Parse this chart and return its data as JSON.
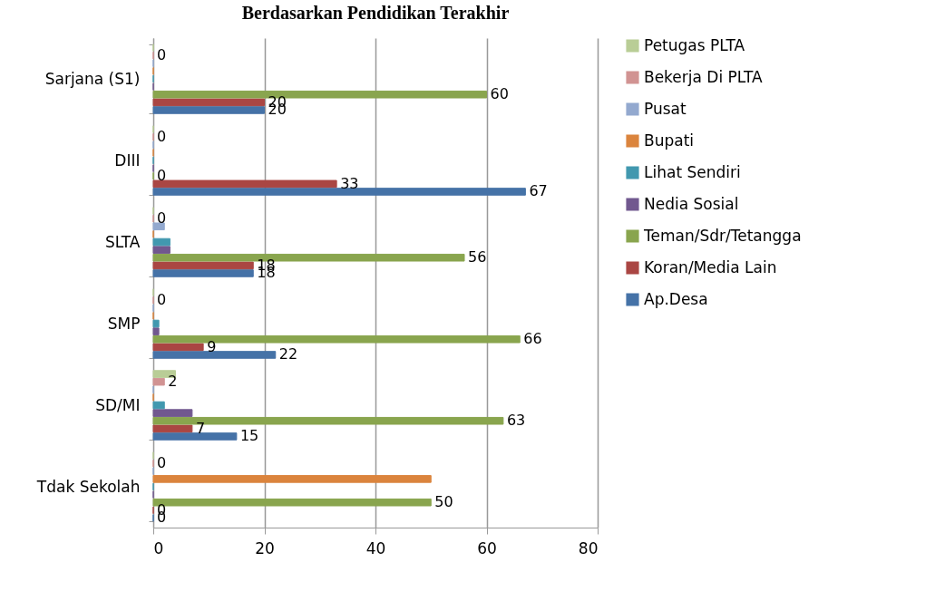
{
  "chart_data": {
    "type": "bar",
    "orientation": "horizontal",
    "title": "Berdasarkan Pendidikan Terakhir",
    "categories": [
      "Sarjana (S1)",
      "DIII",
      "SLTA",
      "SMP",
      "SD/MI",
      "Tdak Sekolah"
    ],
    "series": [
      {
        "name": "Ap.Desa",
        "color": "#4572a7",
        "values": [
          20,
          67,
          18,
          22,
          15,
          0
        ],
        "value_labels": [
          "20",
          "67",
          "18",
          "22",
          "15",
          "0"
        ]
      },
      {
        "name": "Koran/Media Lain",
        "color": "#aa4643",
        "values": [
          20,
          33,
          18,
          9,
          7,
          0
        ],
        "value_labels": [
          "20",
          "33",
          "18",
          "9",
          "7",
          "0"
        ]
      },
      {
        "name": "Teman/Sdr/Tetangga",
        "color": "#89a54e",
        "values": [
          60,
          0,
          56,
          66,
          63,
          50
        ],
        "value_labels": [
          "60",
          "0",
          "56",
          "66",
          "63",
          "50"
        ]
      },
      {
        "name": "Nedia Sosial",
        "color": "#71588f",
        "values": [
          0,
          0,
          3,
          1,
          7,
          0
        ]
      },
      {
        "name": "Lihat Sendiri",
        "color": "#4198af",
        "values": [
          0,
          0,
          3,
          1,
          2,
          0
        ]
      },
      {
        "name": "Bupati",
        "color": "#db843d",
        "values": [
          0,
          0,
          0,
          0,
          0,
          50
        ]
      },
      {
        "name": "Pusat",
        "color": "#93a9cf",
        "values": [
          0,
          0,
          2,
          0,
          0,
          0
        ]
      },
      {
        "name": "Bekerja Di PLTA",
        "color": "#d19392",
        "values": [
          0,
          0,
          0,
          0,
          2,
          0
        ],
        "value_labels": [
          "0",
          "0",
          "0",
          "0",
          "2",
          "0"
        ]
      },
      {
        "name": "Petugas PLTA",
        "color": "#b9cd96",
        "values": [
          0,
          0,
          0,
          0,
          4,
          0
        ]
      }
    ],
    "xlim": [
      0,
      80
    ],
    "xticks": [
      0,
      20,
      40,
      60,
      80
    ],
    "grid": "x",
    "legend": "right"
  }
}
